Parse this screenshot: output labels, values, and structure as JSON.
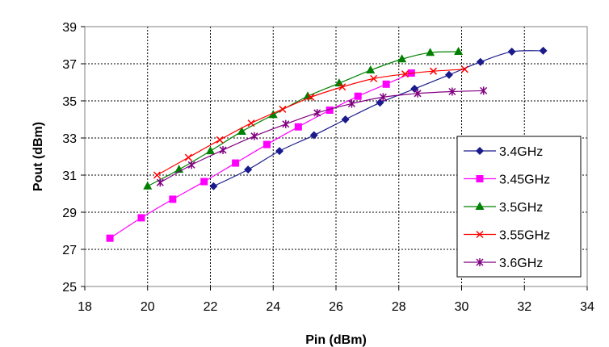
{
  "chart_data": {
    "type": "line",
    "title": "",
    "xlabel": "Pin (dBm)",
    "ylabel": "Pout (dBm)",
    "xlim": [
      18,
      34
    ],
    "ylim": [
      25,
      39
    ],
    "xticks": [
      18,
      20,
      22,
      24,
      26,
      28,
      30,
      32,
      34
    ],
    "yticks": [
      25,
      27,
      29,
      31,
      33,
      35,
      37,
      39
    ],
    "grid": true,
    "legend": "right",
    "series": [
      {
        "name": "3.4GHz",
        "color": "#1a1a8c",
        "marker": "diamond",
        "x": [
          22.1,
          23.2,
          24.2,
          25.3,
          26.3,
          27.4,
          28.5,
          29.6,
          30.6,
          31.6,
          32.6
        ],
        "y": [
          30.4,
          31.3,
          32.3,
          33.15,
          34.0,
          34.9,
          35.65,
          36.4,
          37.1,
          37.65,
          37.7
        ]
      },
      {
        "name": "3.45GHz",
        "color": "#ff00ff",
        "marker": "square",
        "x": [
          18.8,
          19.8,
          20.8,
          21.8,
          22.8,
          23.8,
          24.8,
          25.8,
          26.7,
          27.6,
          28.4
        ],
        "y": [
          27.6,
          28.7,
          29.7,
          30.65,
          31.65,
          32.65,
          33.6,
          34.5,
          35.25,
          35.9,
          36.5
        ]
      },
      {
        "name": "3.5GHz",
        "color": "#008000",
        "marker": "triangle",
        "x": [
          20.0,
          21.0,
          22.0,
          23.0,
          24.0,
          25.1,
          26.1,
          27.1,
          28.1,
          29.0,
          29.9
        ],
        "y": [
          30.4,
          31.3,
          32.3,
          33.35,
          34.25,
          35.25,
          35.95,
          36.65,
          37.25,
          37.6,
          37.65
        ]
      },
      {
        "name": "3.55GHz",
        "color": "#ff0000",
        "marker": "x",
        "x": [
          20.3,
          21.3,
          22.3,
          23.3,
          24.3,
          25.2,
          26.2,
          27.2,
          28.2,
          29.1,
          30.1
        ],
        "y": [
          31.0,
          31.95,
          32.9,
          33.8,
          34.55,
          35.2,
          35.75,
          36.2,
          36.45,
          36.6,
          36.7
        ]
      },
      {
        "name": "3.6GHz",
        "color": "#800080",
        "marker": "star",
        "x": [
          20.4,
          21.4,
          22.4,
          23.4,
          24.4,
          25.4,
          26.5,
          27.5,
          28.6,
          29.7,
          30.7
        ],
        "y": [
          30.6,
          31.55,
          32.35,
          33.1,
          33.75,
          34.35,
          34.85,
          35.2,
          35.4,
          35.5,
          35.55
        ]
      }
    ]
  }
}
